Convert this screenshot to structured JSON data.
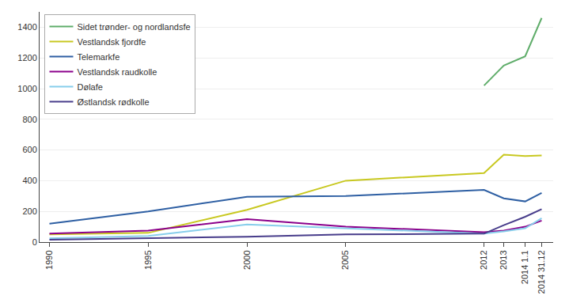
{
  "chart_data": {
    "type": "line",
    "x": [
      1990,
      1995,
      2000,
      2005,
      2012,
      2013,
      2014.083,
      2014.917
    ],
    "series": [
      {
        "name": "Sidet trønder- og nordlandsfe",
        "color": "#5fad6a",
        "values": [
          null,
          null,
          null,
          null,
          1020,
          1150,
          1210,
          1460
        ]
      },
      {
        "name": "Vestlandsk fjordfe",
        "color": "#c8c820",
        "values": [
          50,
          60,
          210,
          400,
          450,
          570,
          560,
          565
        ]
      },
      {
        "name": "Telemarkfe",
        "color": "#2e5fa3",
        "values": [
          120,
          200,
          295,
          300,
          340,
          285,
          265,
          320
        ]
      },
      {
        "name": "Vestlandsk raudkolle",
        "color": "#8B008B",
        "values": [
          55,
          75,
          150,
          100,
          65,
          75,
          100,
          140
        ]
      },
      {
        "name": "Dølafe",
        "color": "#87CEEB",
        "values": [
          25,
          40,
          115,
          90,
          55,
          70,
          90,
          155
        ]
      },
      {
        "name": "Østlandsk rødkolle",
        "color": "#483D8B",
        "values": [
          15,
          25,
          35,
          50,
          55,
          110,
          165,
          215
        ]
      }
    ],
    "xlim": [
      1989.5,
      2015.5
    ],
    "xticks": [
      1990,
      1995,
      2000,
      2005,
      2012,
      2013,
      {
        "value": 2014.083,
        "label": "2014 1.1"
      },
      {
        "value": 2014.917,
        "label": "2014 31.12"
      }
    ],
    "ylim": [
      0,
      1500
    ],
    "yticks": [
      0,
      200,
      400,
      600,
      800,
      1000,
      1200,
      1400
    ],
    "grid": true,
    "legend": "upper left"
  }
}
